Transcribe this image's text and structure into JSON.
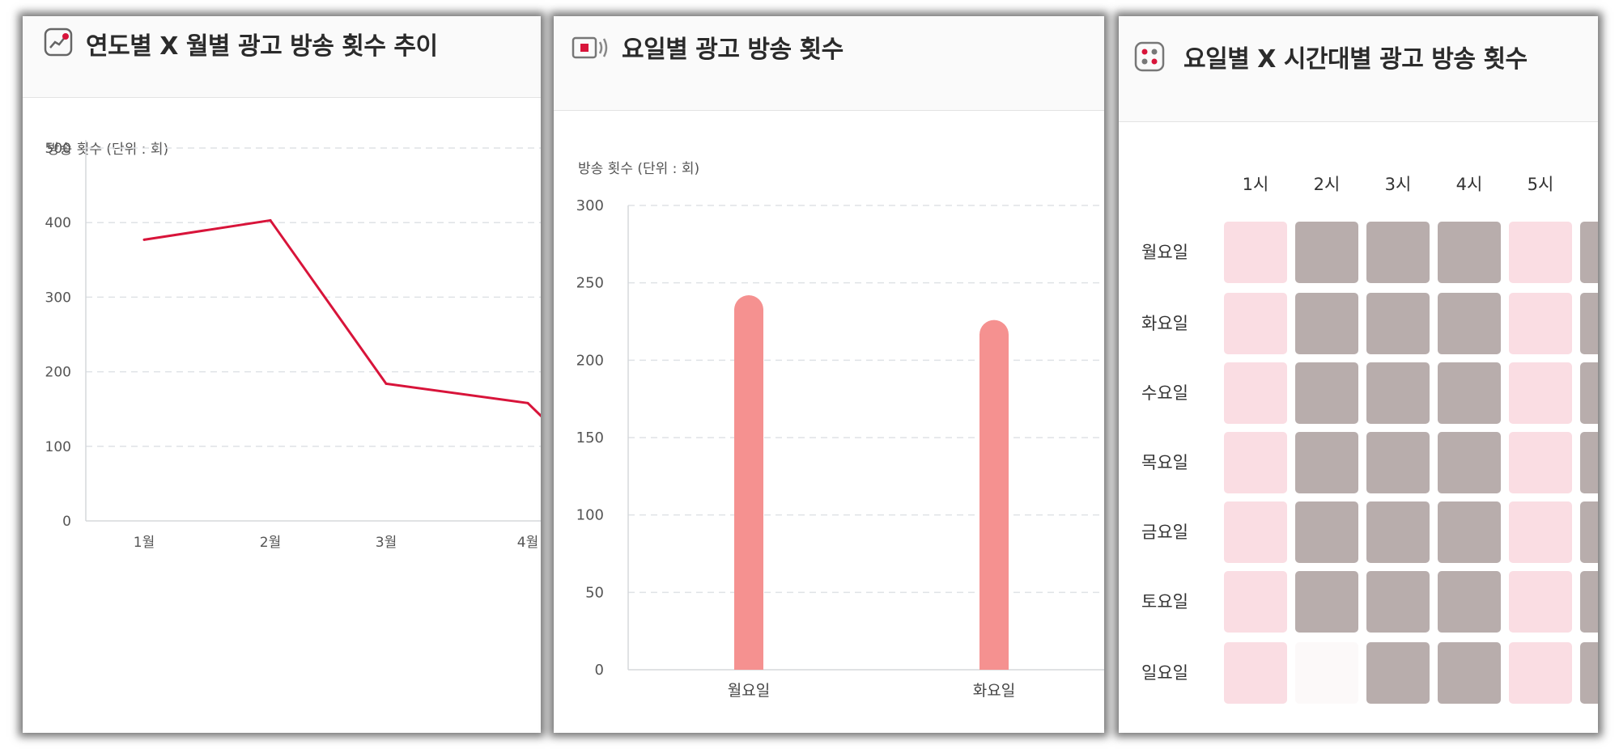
{
  "panels": {
    "line": {
      "title": "연도별 X 월별 광고 방송 횟수 추이",
      "unit": "방송 횟수 (단위 : 회)",
      "icon": "line-chart-icon"
    },
    "bar": {
      "title": "요일별 광고 방송 횟수",
      "unit": "방송 횟수 (단위 : 회)",
      "icon": "broadcast-icon"
    },
    "heatmap": {
      "title": "요일별 X 시간대별 광고 방송 횟수",
      "icon": "grid-dots-icon"
    }
  },
  "chart_data": [
    {
      "type": "line",
      "title": "연도별 X 월별 광고 방송 횟수 추이",
      "ylabel": "방송 횟수 (단위 : 회)",
      "categories": [
        "1월",
        "2월",
        "3월",
        "4월"
      ],
      "series": [
        {
          "values": [
            377,
            403,
            184,
            158
          ],
          "color": "#d8143a"
        }
      ],
      "ylim": [
        0,
        500
      ],
      "yticks": [
        0,
        100,
        200,
        300,
        400,
        500
      ],
      "grid": true
    },
    {
      "type": "bar",
      "title": "요일별 광고 방송 횟수",
      "ylabel": "방송 횟수 (단위 : 회)",
      "categories": [
        "월요일",
        "화요일"
      ],
      "values": [
        242,
        226
      ],
      "color": "#f59190",
      "ylim": [
        0,
        300
      ],
      "yticks": [
        0,
        50,
        100,
        150,
        200,
        250,
        300
      ],
      "grid": true
    },
    {
      "type": "heatmap",
      "title": "요일별 X 시간대별 광고 방송 횟수",
      "columns": [
        "1시",
        "2시",
        "3시",
        "4시",
        "5시"
      ],
      "rows": [
        "월요일",
        "화요일",
        "수요일",
        "목요일",
        "금요일",
        "토요일",
        "일요일"
      ],
      "levels": [
        [
          1,
          2,
          2,
          2,
          1
        ],
        [
          1,
          2,
          2,
          2,
          1
        ],
        [
          1,
          2,
          2,
          2,
          1
        ],
        [
          1,
          2,
          2,
          2,
          1
        ],
        [
          1,
          2,
          2,
          2,
          1
        ],
        [
          1,
          2,
          2,
          2,
          1
        ],
        [
          1,
          0,
          2,
          2,
          1
        ]
      ],
      "colors": {
        "0": "#fcf9f9",
        "1": "#fadde3",
        "2": "#b8adac"
      }
    }
  ]
}
